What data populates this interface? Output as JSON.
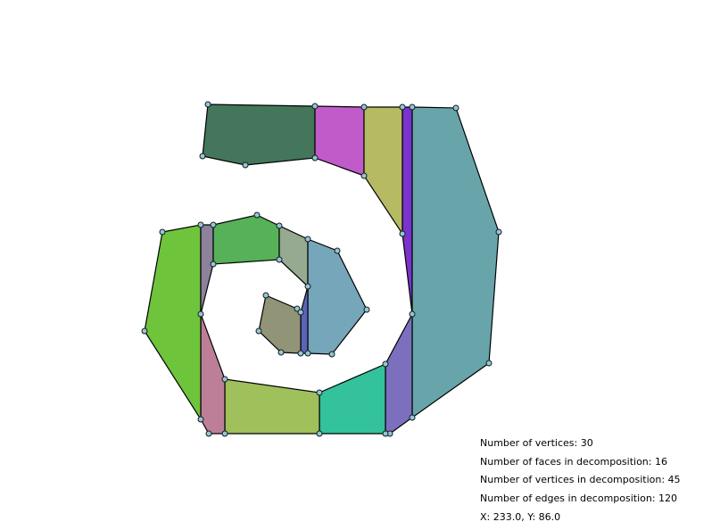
{
  "colors": {
    "background": "#ffffff",
    "edge": "#000000",
    "vertex_fill": "#8fc8d8"
  },
  "faces": [
    {
      "name": "face-dark-green",
      "color": "#43765a"
    },
    {
      "name": "face-magenta",
      "color": "#c05bc9"
    },
    {
      "name": "face-olive",
      "color": "#b6ba62"
    },
    {
      "name": "face-purple-strip",
      "color": "#7a33cc"
    },
    {
      "name": "face-teal-large",
      "color": "#68a5ab"
    },
    {
      "name": "face-periwinkle",
      "color": "#7b6fbe"
    },
    {
      "name": "face-sea-green",
      "color": "#33c29b"
    },
    {
      "name": "face-yellow-green",
      "color": "#9fc05a"
    },
    {
      "name": "face-pink",
      "color": "#bd7f97"
    },
    {
      "name": "face-green-left",
      "color": "#6ec43b"
    },
    {
      "name": "face-mauve-strip",
      "color": "#8d829b"
    },
    {
      "name": "face-green-mid",
      "color": "#56b158"
    },
    {
      "name": "face-sage",
      "color": "#95aa90"
    },
    {
      "name": "face-steel-blue",
      "color": "#76a6ba"
    },
    {
      "name": "face-blue-strip",
      "color": "#5a64b8"
    },
    {
      "name": "face-khaki",
      "color": "#929478"
    }
  ],
  "stats": {
    "vertices": "Number of vertices: 30",
    "faces": "Number of faces in decomposition: 16",
    "decomp_vertices": "Number of vertices in decomposition: 45",
    "decomp_edges": "Number of edges in decomposition: 120",
    "cursor": "X: 233.0, Y: 86.0"
  }
}
